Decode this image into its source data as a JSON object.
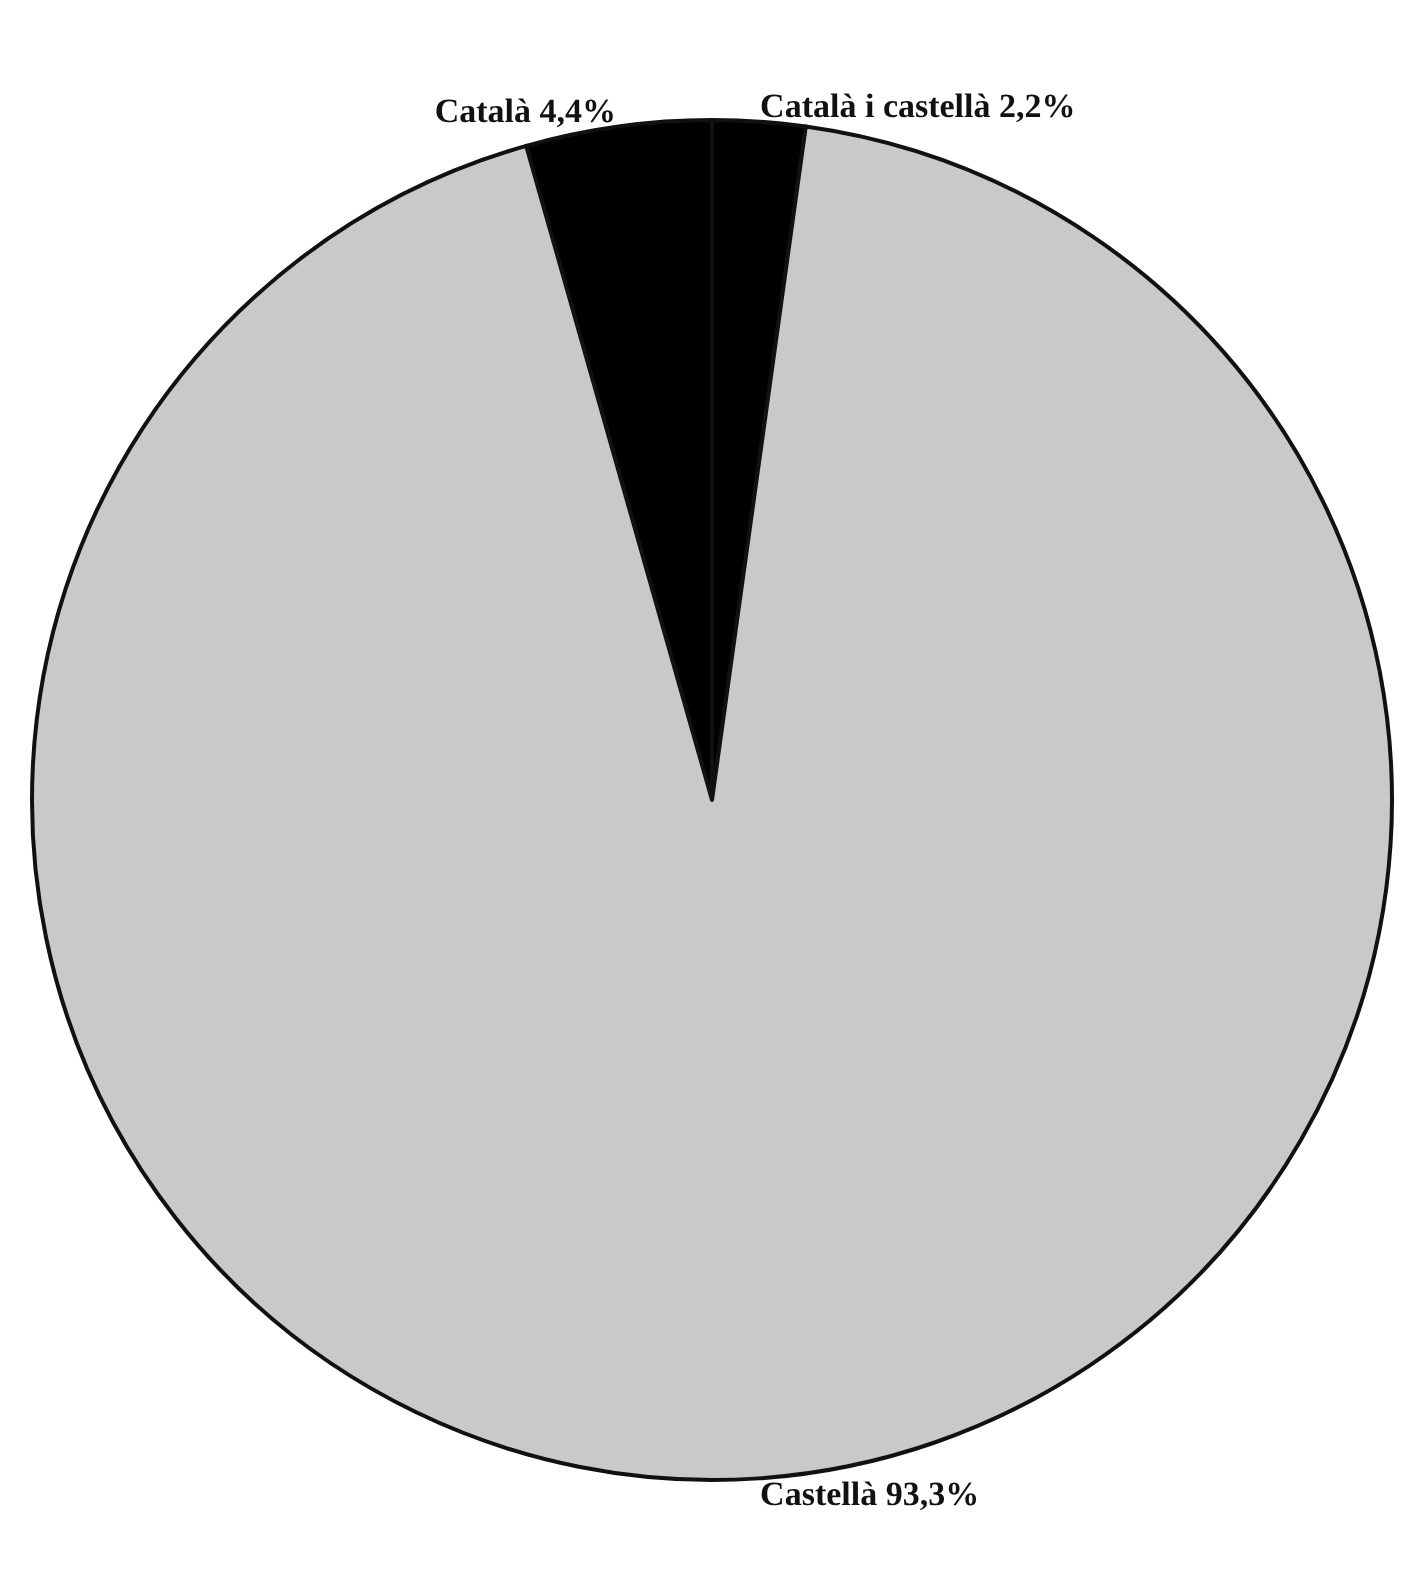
{
  "chart_data": {
    "type": "pie",
    "categories": [
      "Català",
      "Català i castellà",
      "Castellà"
    ],
    "values": [
      4.4,
      2.2,
      93.3
    ],
    "value_labels": [
      "4,4%",
      "2,2%",
      "93,3%"
    ],
    "colors": [
      "#000000",
      "#000000",
      "#c9c9c9"
    ]
  }
}
